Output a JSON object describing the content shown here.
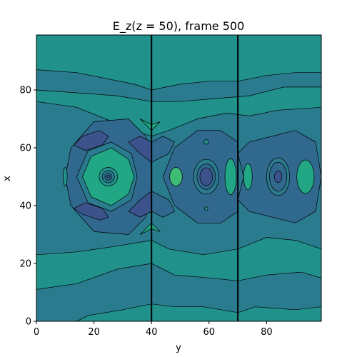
{
  "chart_data": {
    "type": "heatmap",
    "subtype": "filled-contour",
    "title": "E_z(z = 50), frame 500",
    "xlabel": "y",
    "ylabel": "x",
    "xlim": [
      0,
      99
    ],
    "ylim": [
      0,
      99
    ],
    "xticks": [
      "0",
      "20",
      "40",
      "60",
      "80"
    ],
    "yticks": [
      "0",
      "20",
      "40",
      "60",
      "80"
    ],
    "xtick_values": [
      0,
      20,
      40,
      60,
      80
    ],
    "ytick_values": [
      0,
      20,
      40,
      60,
      80
    ],
    "grid": false,
    "colormap": "viridis",
    "contour_fill_colors": [
      "#3b528b",
      "#31688e",
      "#2a7b8e",
      "#21918c",
      "#22a785",
      "#3cbc75"
    ],
    "contour_line_color": "#000000",
    "source": {
      "y": 25,
      "x": 50
    },
    "walls": [
      40,
      70
    ]
  }
}
